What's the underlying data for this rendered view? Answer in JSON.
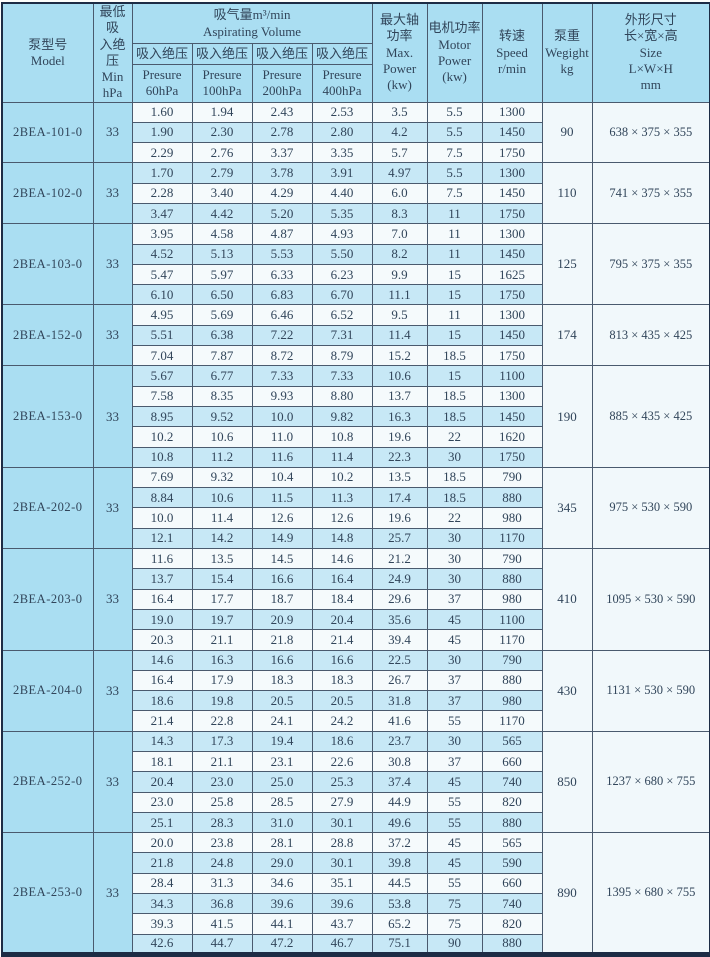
{
  "table": {
    "columns": {
      "model": [
        "泵型号",
        "Model"
      ],
      "min": [
        "最低吸",
        "入绝压",
        "Min",
        "hPa"
      ],
      "aspirating": [
        "吸气量m³/min",
        "Aspirating Volume"
      ],
      "pressures": [
        {
          "label": "吸入绝压",
          "sub": [
            "Presure",
            "60hPa"
          ]
        },
        {
          "label": "吸入绝压",
          "sub": [
            "Presure",
            "100hPa"
          ]
        },
        {
          "label": "吸入绝压",
          "sub": [
            "Presure",
            "200hPa"
          ]
        },
        {
          "label": "吸入绝压",
          "sub": [
            "Presure",
            "400hPa"
          ]
        }
      ],
      "max_power": [
        "最大轴",
        "功率",
        "Max.",
        "Power",
        "(kw)"
      ],
      "motor_power": [
        "电机功率",
        "Motor",
        "Power",
        "(kw)"
      ],
      "speed": [
        "转速",
        "Speed",
        "r/min"
      ],
      "weight": [
        "泵重",
        "Wegight",
        "kg"
      ],
      "size": [
        "外形尺寸",
        "长×宽×高",
        "Size",
        "L×W×H",
        "mm"
      ]
    },
    "colors": {
      "header_blue": "#aadef2",
      "row_blue": "#c7e8f6",
      "row_white": "#f5fafc",
      "border_dark": "#1d2c45",
      "grid": "#4a5a6e",
      "text": "#31455a"
    },
    "groups": [
      {
        "model": "2BEA-101-0",
        "min": "33",
        "weight": "90",
        "size": "638 × 375 × 355",
        "rows": [
          [
            "1.60",
            "1.94",
            "2.43",
            "2.53",
            "3.5",
            "5.5",
            "1300"
          ],
          [
            "1.90",
            "2.30",
            "2.78",
            "2.80",
            "4.2",
            "5.5",
            "1450"
          ],
          [
            "2.29",
            "2.76",
            "3.37",
            "3.35",
            "5.7",
            "7.5",
            "1750"
          ]
        ]
      },
      {
        "model": "2BEA-102-0",
        "min": "33",
        "weight": "110",
        "size": "741 × 375 × 355",
        "rows": [
          [
            "1.70",
            "2.79",
            "3.78",
            "3.91",
            "4.97",
            "5.5",
            "1300"
          ],
          [
            "2.28",
            "3.40",
            "4.29",
            "4.40",
            "6.0",
            "7.5",
            "1450"
          ],
          [
            "3.47",
            "4.42",
            "5.20",
            "5.35",
            "8.3",
            "11",
            "1750"
          ]
        ]
      },
      {
        "model": "2BEA-103-0",
        "min": "33",
        "weight": "125",
        "size": "795 × 375 × 355",
        "rows": [
          [
            "3.95",
            "4.58",
            "4.87",
            "4.93",
            "7.0",
            "11",
            "1300"
          ],
          [
            "4.52",
            "5.13",
            "5.53",
            "5.50",
            "8.2",
            "11",
            "1450"
          ],
          [
            "5.47",
            "5.97",
            "6.33",
            "6.23",
            "9.9",
            "15",
            "1625"
          ],
          [
            "6.10",
            "6.50",
            "6.83",
            "6.70",
            "11.1",
            "15",
            "1750"
          ]
        ]
      },
      {
        "model": "2BEA-152-0",
        "min": "33",
        "weight": "174",
        "size": "813 × 435 × 425",
        "rows": [
          [
            "4.95",
            "5.69",
            "6.46",
            "6.52",
            "9.5",
            "11",
            "1300"
          ],
          [
            "5.51",
            "6.38",
            "7.22",
            "7.31",
            "11.4",
            "15",
            "1450"
          ],
          [
            "7.04",
            "7.87",
            "8.72",
            "8.79",
            "15.2",
            "18.5",
            "1750"
          ]
        ]
      },
      {
        "model": "2BEA-153-0",
        "min": "33",
        "weight": "190",
        "size": "885 × 435 × 425",
        "rows": [
          [
            "5.67",
            "6.77",
            "7.33",
            "7.33",
            "10.6",
            "15",
            "1100"
          ],
          [
            "7.58",
            "8.35",
            "9.93",
            "8.80",
            "13.7",
            "18.5",
            "1300"
          ],
          [
            "8.95",
            "9.52",
            "10.0",
            "9.82",
            "16.3",
            "18.5",
            "1450"
          ],
          [
            "10.2",
            "10.6",
            "11.0",
            "10.8",
            "19.6",
            "22",
            "1620"
          ],
          [
            "10.8",
            "11.2",
            "11.6",
            "11.4",
            "22.3",
            "30",
            "1750"
          ]
        ]
      },
      {
        "model": "2BEA-202-0",
        "min": "33",
        "weight": "345",
        "size": "975 × 530 × 590",
        "rows": [
          [
            "7.69",
            "9.32",
            "10.4",
            "10.2",
            "13.5",
            "18.5",
            "790"
          ],
          [
            "8.84",
            "10.6",
            "11.5",
            "11.3",
            "17.4",
            "18.5",
            "880"
          ],
          [
            "10.0",
            "11.4",
            "12.6",
            "12.6",
            "19.6",
            "22",
            "980"
          ],
          [
            "12.1",
            "14.2",
            "14.9",
            "14.8",
            "25.7",
            "30",
            "1170"
          ]
        ]
      },
      {
        "model": "2BEA-203-0",
        "min": "33",
        "weight": "410",
        "size": "1095 × 530 × 590",
        "rows": [
          [
            "11.6",
            "13.5",
            "14.5",
            "14.6",
            "21.2",
            "30",
            "790"
          ],
          [
            "13.7",
            "15.4",
            "16.6",
            "16.4",
            "24.9",
            "30",
            "880"
          ],
          [
            "16.4",
            "17.7",
            "18.7",
            "18.4",
            "29.6",
            "37",
            "980"
          ],
          [
            "19.0",
            "19.7",
            "20.9",
            "20.4",
            "35.6",
            "45",
            "1100"
          ],
          [
            "20.3",
            "21.1",
            "21.8",
            "21.4",
            "39.4",
            "45",
            "1170"
          ]
        ]
      },
      {
        "model": "2BEA-204-0",
        "min": "33",
        "weight": "430",
        "size": "1131 × 530 × 590",
        "rows": [
          [
            "14.6",
            "16.3",
            "16.6",
            "16.6",
            "22.5",
            "30",
            "790"
          ],
          [
            "16.4",
            "17.9",
            "18.3",
            "18.3",
            "26.7",
            "37",
            "880"
          ],
          [
            "18.6",
            "19.8",
            "20.5",
            "20.5",
            "31.8",
            "37",
            "980"
          ],
          [
            "21.4",
            "22.8",
            "24.1",
            "24.2",
            "41.6",
            "55",
            "1170"
          ]
        ]
      },
      {
        "model": "2BEA-252-0",
        "min": "33",
        "weight": "850",
        "size": "1237 × 680 × 755",
        "rows": [
          [
            "14.3",
            "17.3",
            "19.4",
            "18.6",
            "23.7",
            "30",
            "565"
          ],
          [
            "18.1",
            "21.1",
            "23.1",
            "22.6",
            "30.8",
            "37",
            "660"
          ],
          [
            "20.4",
            "23.0",
            "25.0",
            "25.3",
            "37.4",
            "45",
            "740"
          ],
          [
            "23.0",
            "25.8",
            "28.5",
            "27.9",
            "44.9",
            "55",
            "820"
          ],
          [
            "25.1",
            "28.3",
            "31.0",
            "30.1",
            "49.6",
            "55",
            "880"
          ]
        ]
      },
      {
        "model": "2BEA-253-0",
        "min": "33",
        "weight": "890",
        "size": "1395 × 680 × 755",
        "rows": [
          [
            "20.0",
            "23.8",
            "28.1",
            "28.8",
            "37.2",
            "45",
            "565"
          ],
          [
            "21.8",
            "24.8",
            "29.0",
            "30.1",
            "39.8",
            "45",
            "590"
          ],
          [
            "28.4",
            "31.3",
            "34.6",
            "35.1",
            "44.5",
            "55",
            "660"
          ],
          [
            "34.3",
            "36.8",
            "39.6",
            "39.6",
            "53.8",
            "75",
            "740"
          ],
          [
            "39.3",
            "41.5",
            "44.1",
            "43.7",
            "65.2",
            "75",
            "820"
          ],
          [
            "42.6",
            "44.7",
            "47.2",
            "46.7",
            "75.1",
            "90",
            "880"
          ]
        ]
      }
    ]
  }
}
